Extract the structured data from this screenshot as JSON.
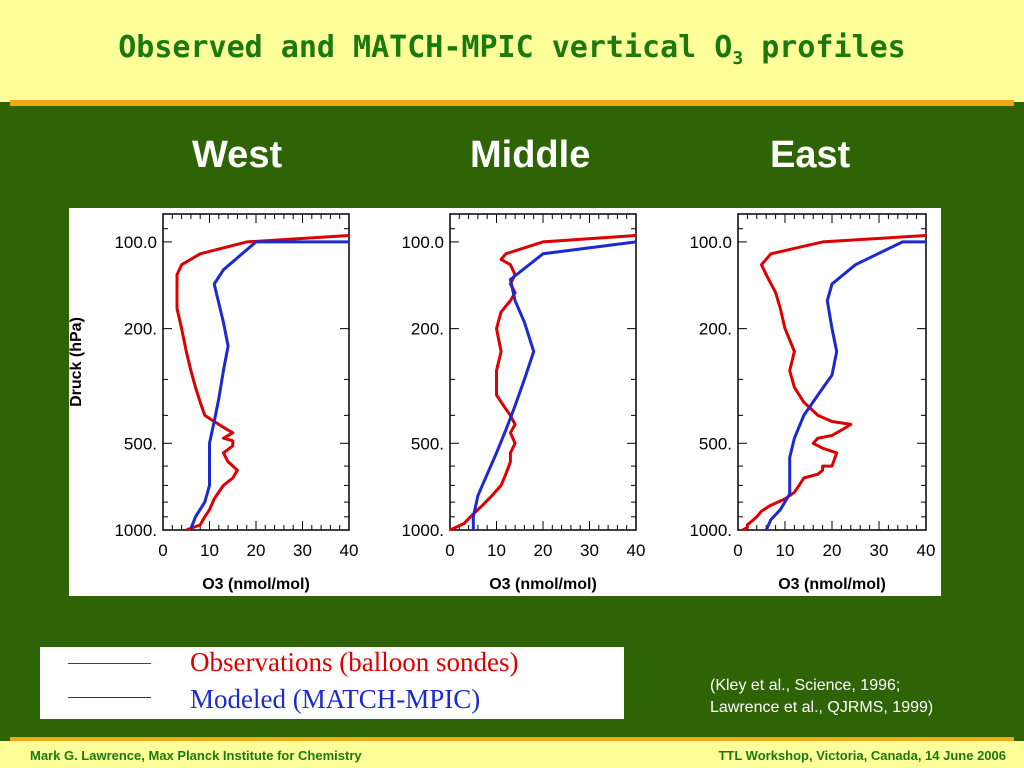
{
  "slide": {
    "title_main": "Observed and MATCH-MPIC vertical O",
    "title_sub": "3",
    "title_end": " profiles",
    "footer_left": "Mark G. Lawrence, Max Planck Institute for Chemistry",
    "footer_right": "TTL Workshop, Victoria, Canada, 14 June 2006",
    "reference_line1": "(Kley et al., Science, 1996;",
    "reference_line2": "Lawrence et al., QJRMS, 1999)"
  },
  "legend": {
    "observed_label": "Observations (balloon sondes)",
    "modeled_label": "Modeled (MATCH-MPIC)",
    "observed_color": "#dd0000",
    "modeled_color": "#1a2ad0"
  },
  "chart_data": [
    {
      "type": "line",
      "title": "West",
      "xlabel": "O3 (nmol/mol)",
      "ylabel": "Druck (hPa)",
      "xlim": [
        0,
        40
      ],
      "ylim": [
        1000,
        80
      ],
      "yscale": "log",
      "xticks": [
        "0",
        "10",
        "20",
        "30",
        "40"
      ],
      "yticks": [
        "100.0",
        "200.",
        "500.",
        "1000."
      ],
      "series": [
        {
          "name": "Observations (balloon sondes)",
          "color": "#dd0000",
          "x": [
            5,
            8,
            9,
            10,
            11,
            13,
            15,
            16,
            14,
            13,
            15,
            15,
            13,
            15,
            13,
            11,
            9,
            8,
            7,
            6,
            5,
            4,
            3,
            3,
            3,
            4,
            8,
            18,
            40
          ],
          "y": [
            1000,
            960,
            900,
            850,
            780,
            700,
            660,
            620,
            580,
            540,
            510,
            490,
            480,
            460,
            440,
            420,
            400,
            360,
            320,
            280,
            240,
            200,
            170,
            150,
            130,
            120,
            110,
            100,
            95
          ]
        },
        {
          "name": "Modeled (MATCH-MPIC)",
          "color": "#1a2ad0",
          "x": [
            6,
            7,
            9,
            10,
            10,
            10,
            11,
            12,
            13,
            14,
            13,
            11,
            13,
            20,
            40
          ],
          "y": [
            990,
            900,
            800,
            700,
            600,
            500,
            420,
            350,
            280,
            230,
            190,
            140,
            125,
            100,
            100
          ]
        }
      ]
    },
    {
      "type": "line",
      "title": "Middle",
      "xlabel": "O3 (nmol/mol)",
      "ylabel": "",
      "xlim": [
        0,
        40
      ],
      "ylim": [
        1000,
        80
      ],
      "yscale": "log",
      "xticks": [
        "0",
        "10",
        "20",
        "30",
        "40"
      ],
      "yticks": [
        "100.0",
        "200.",
        "500.",
        "1000."
      ],
      "series": [
        {
          "name": "Observations (balloon sondes)",
          "color": "#dd0000",
          "x": [
            0,
            3,
            5,
            7,
            9,
            11,
            12,
            13,
            13,
            14,
            13,
            14,
            13,
            12,
            10,
            10,
            11,
            10,
            11,
            13,
            14,
            13,
            14,
            13,
            11,
            12,
            20,
            40
          ],
          "y": [
            1000,
            950,
            880,
            820,
            760,
            700,
            640,
            580,
            540,
            500,
            460,
            430,
            400,
            380,
            340,
            280,
            240,
            200,
            175,
            160,
            150,
            140,
            130,
            120,
            115,
            110,
            100,
            95
          ]
        },
        {
          "name": "Modeled (MATCH-MPIC)",
          "color": "#1a2ad0",
          "x": [
            5,
            5,
            6,
            8,
            10,
            12,
            14,
            16,
            18,
            16,
            14,
            13,
            20,
            40
          ],
          "y": [
            1000,
            900,
            760,
            640,
            540,
            450,
            370,
            300,
            240,
            190,
            160,
            135,
            110,
            100
          ]
        }
      ]
    },
    {
      "type": "line",
      "title": "East",
      "xlabel": "O3 (nmol/mol)",
      "ylabel": "",
      "xlim": [
        0,
        40
      ],
      "ylim": [
        1000,
        80
      ],
      "yscale": "log",
      "xticks": [
        "0",
        "10",
        "20",
        "30",
        "40"
      ],
      "yticks": [
        "100.0",
        "200.",
        "500.",
        "1000."
      ],
      "series": [
        {
          "name": "Observations (balloon sondes)",
          "color": "#dd0000",
          "x": [
            1,
            2,
            2,
            3,
            4,
            5,
            7,
            10,
            12,
            13,
            14,
            17,
            18,
            18,
            20,
            21,
            18,
            16,
            17,
            20,
            22,
            24,
            20,
            17,
            14,
            12,
            11,
            12,
            10,
            9,
            8,
            6,
            5,
            7,
            18,
            40
          ],
          "y": [
            1000,
            980,
            960,
            930,
            900,
            860,
            820,
            780,
            740,
            700,
            660,
            640,
            620,
            600,
            600,
            540,
            520,
            500,
            480,
            470,
            450,
            430,
            420,
            400,
            360,
            320,
            280,
            240,
            200,
            170,
            150,
            130,
            120,
            110,
            100,
            95
          ]
        },
        {
          "name": "Modeled (MATCH-MPIC)",
          "color": "#1a2ad0",
          "x": [
            6,
            7,
            9,
            11,
            11,
            11,
            12,
            14,
            17,
            20,
            21,
            20,
            19,
            20,
            25,
            35,
            40
          ],
          "y": [
            1000,
            920,
            850,
            750,
            650,
            560,
            480,
            400,
            340,
            290,
            240,
            200,
            160,
            140,
            120,
            100,
            100
          ]
        }
      ]
    }
  ]
}
